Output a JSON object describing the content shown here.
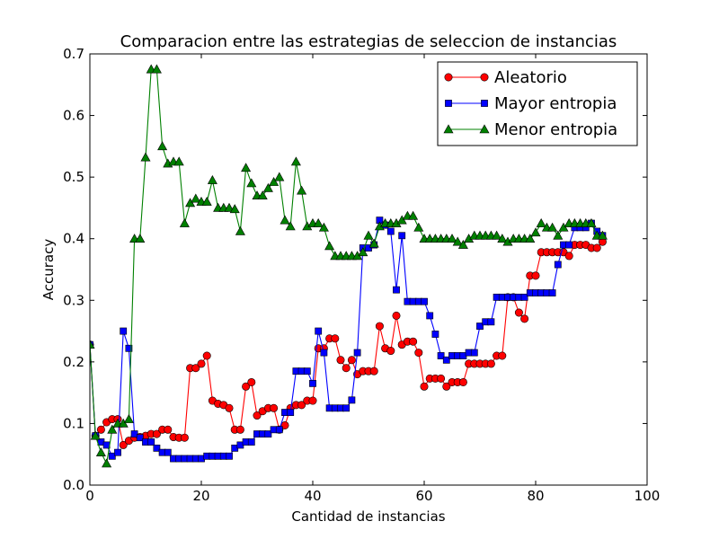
{
  "chart_data": {
    "type": "line",
    "title": "Comparacion entre las estrategias de seleccion de instancias",
    "xlabel": "Cantidad de instancias",
    "ylabel": "Accuracy",
    "xlim": [
      0,
      100
    ],
    "ylim": [
      0.0,
      0.7
    ],
    "xticks": [
      0,
      20,
      40,
      60,
      80,
      100
    ],
    "yticks": [
      0.0,
      0.1,
      0.2,
      0.3,
      0.4,
      0.5,
      0.6,
      0.7
    ],
    "xtick_labels": [
      "0",
      "20",
      "40",
      "60",
      "80",
      "100"
    ],
    "ytick_labels": [
      "0.0",
      "0.1",
      "0.2",
      "0.3",
      "0.4",
      "0.5",
      "0.6",
      "0.7"
    ],
    "grid": false,
    "legend_position": "top-right",
    "series": [
      {
        "name": "Aleatorio",
        "color": "#ff0000",
        "marker": "circle",
        "x": [
          0,
          1,
          2,
          3,
          4,
          5,
          6,
          7,
          8,
          9,
          10,
          11,
          12,
          13,
          14,
          15,
          16,
          17,
          18,
          19,
          20,
          21,
          22,
          23,
          24,
          25,
          26,
          27,
          28,
          29,
          30,
          31,
          32,
          33,
          34,
          35,
          36,
          37,
          38,
          39,
          40,
          41,
          42,
          43,
          44,
          45,
          46,
          47,
          48,
          49,
          50,
          51,
          52,
          53,
          54,
          55,
          56,
          57,
          58,
          59,
          60,
          61,
          62,
          63,
          64,
          65,
          66,
          67,
          68,
          69,
          70,
          71,
          72,
          73,
          74,
          75,
          76,
          77,
          78,
          79,
          80,
          81,
          82,
          83,
          84,
          85,
          86,
          87,
          88,
          89,
          90,
          91,
          92
        ],
        "y": [
          0.228,
          0.08,
          0.09,
          0.102,
          0.107,
          0.107,
          0.065,
          0.072,
          0.077,
          0.078,
          0.08,
          0.083,
          0.083,
          0.09,
          0.09,
          0.078,
          0.077,
          0.077,
          0.19,
          0.19,
          0.197,
          0.21,
          0.137,
          0.132,
          0.13,
          0.125,
          0.09,
          0.09,
          0.16,
          0.167,
          0.113,
          0.12,
          0.125,
          0.125,
          0.09,
          0.097,
          0.125,
          0.13,
          0.13,
          0.137,
          0.137,
          0.222,
          0.222,
          0.238,
          0.238,
          0.203,
          0.19,
          0.203,
          0.18,
          0.185,
          0.185,
          0.185,
          0.258,
          0.222,
          0.218,
          0.275,
          0.228,
          0.233,
          0.233,
          0.215,
          0.16,
          0.173,
          0.173,
          0.173,
          0.16,
          0.167,
          0.167,
          0.167,
          0.197,
          0.197,
          0.197,
          0.197,
          0.197,
          0.21,
          0.21,
          0.305,
          0.305,
          0.28,
          0.27,
          0.34,
          0.34,
          0.378,
          0.378,
          0.378,
          0.378,
          0.378,
          0.372,
          0.39,
          0.39,
          0.39,
          0.385,
          0.385,
          0.395
        ]
      },
      {
        "name": "Mayor entropia",
        "color": "#0000ff",
        "marker": "square",
        "x": [
          0,
          1,
          2,
          3,
          4,
          5,
          6,
          7,
          8,
          9,
          10,
          11,
          12,
          13,
          14,
          15,
          16,
          17,
          18,
          19,
          20,
          21,
          22,
          23,
          24,
          25,
          26,
          27,
          28,
          29,
          30,
          31,
          32,
          33,
          34,
          35,
          36,
          37,
          38,
          39,
          40,
          41,
          42,
          43,
          44,
          45,
          46,
          47,
          48,
          49,
          50,
          51,
          52,
          53,
          54,
          55,
          56,
          57,
          58,
          59,
          60,
          61,
          62,
          63,
          64,
          65,
          66,
          67,
          68,
          69,
          70,
          71,
          72,
          73,
          74,
          75,
          76,
          77,
          78,
          79,
          80,
          81,
          82,
          83,
          84,
          85,
          86,
          87,
          88,
          89,
          90,
          91,
          92
        ],
        "y": [
          0.228,
          0.08,
          0.07,
          0.065,
          0.047,
          0.053,
          0.25,
          0.222,
          0.083,
          0.077,
          0.07,
          0.07,
          0.06,
          0.053,
          0.053,
          0.043,
          0.043,
          0.043,
          0.043,
          0.043,
          0.043,
          0.047,
          0.047,
          0.047,
          0.047,
          0.047,
          0.06,
          0.065,
          0.07,
          0.07,
          0.083,
          0.083,
          0.083,
          0.09,
          0.09,
          0.118,
          0.118,
          0.185,
          0.185,
          0.185,
          0.165,
          0.25,
          0.215,
          0.125,
          0.125,
          0.125,
          0.125,
          0.138,
          0.215,
          0.385,
          0.385,
          0.39,
          0.43,
          0.422,
          0.412,
          0.317,
          0.405,
          0.298,
          0.298,
          0.298,
          0.298,
          0.275,
          0.245,
          0.21,
          0.203,
          0.21,
          0.21,
          0.21,
          0.215,
          0.215,
          0.258,
          0.265,
          0.265,
          0.305,
          0.305,
          0.305,
          0.305,
          0.305,
          0.305,
          0.312,
          0.312,
          0.312,
          0.312,
          0.312,
          0.358,
          0.39,
          0.39,
          0.418,
          0.418,
          0.418,
          0.425,
          0.412,
          0.405
        ]
      },
      {
        "name": "Menor entropia",
        "color": "#008000",
        "marker": "triangle",
        "x": [
          0,
          1,
          2,
          3,
          4,
          5,
          6,
          7,
          8,
          9,
          10,
          11,
          12,
          13,
          14,
          15,
          16,
          17,
          18,
          19,
          20,
          21,
          22,
          23,
          24,
          25,
          26,
          27,
          28,
          29,
          30,
          31,
          32,
          33,
          34,
          35,
          36,
          37,
          38,
          39,
          40,
          41,
          42,
          43,
          44,
          45,
          46,
          47,
          48,
          49,
          50,
          51,
          52,
          53,
          54,
          55,
          56,
          57,
          58,
          59,
          60,
          61,
          62,
          63,
          64,
          65,
          66,
          67,
          68,
          69,
          70,
          71,
          72,
          73,
          74,
          75,
          76,
          77,
          78,
          79,
          80,
          81,
          82,
          83,
          84,
          85,
          86,
          87,
          88,
          89,
          90,
          91,
          92
        ],
        "y": [
          0.228,
          0.08,
          0.053,
          0.035,
          0.09,
          0.1,
          0.1,
          0.107,
          0.4,
          0.4,
          0.532,
          0.675,
          0.675,
          0.55,
          0.522,
          0.525,
          0.525,
          0.425,
          0.458,
          0.465,
          0.46,
          0.46,
          0.495,
          0.45,
          0.45,
          0.45,
          0.448,
          0.412,
          0.515,
          0.49,
          0.47,
          0.47,
          0.482,
          0.492,
          0.5,
          0.43,
          0.42,
          0.525,
          0.478,
          0.42,
          0.425,
          0.425,
          0.418,
          0.388,
          0.372,
          0.372,
          0.372,
          0.372,
          0.372,
          0.378,
          0.405,
          0.392,
          0.42,
          0.425,
          0.425,
          0.425,
          0.43,
          0.437,
          0.437,
          0.418,
          0.4,
          0.4,
          0.4,
          0.4,
          0.4,
          0.4,
          0.395,
          0.39,
          0.4,
          0.405,
          0.405,
          0.405,
          0.405,
          0.405,
          0.4,
          0.395,
          0.4,
          0.4,
          0.4,
          0.4,
          0.41,
          0.425,
          0.418,
          0.418,
          0.405,
          0.418,
          0.425,
          0.425,
          0.425,
          0.425,
          0.425,
          0.405,
          0.405
        ]
      }
    ]
  }
}
